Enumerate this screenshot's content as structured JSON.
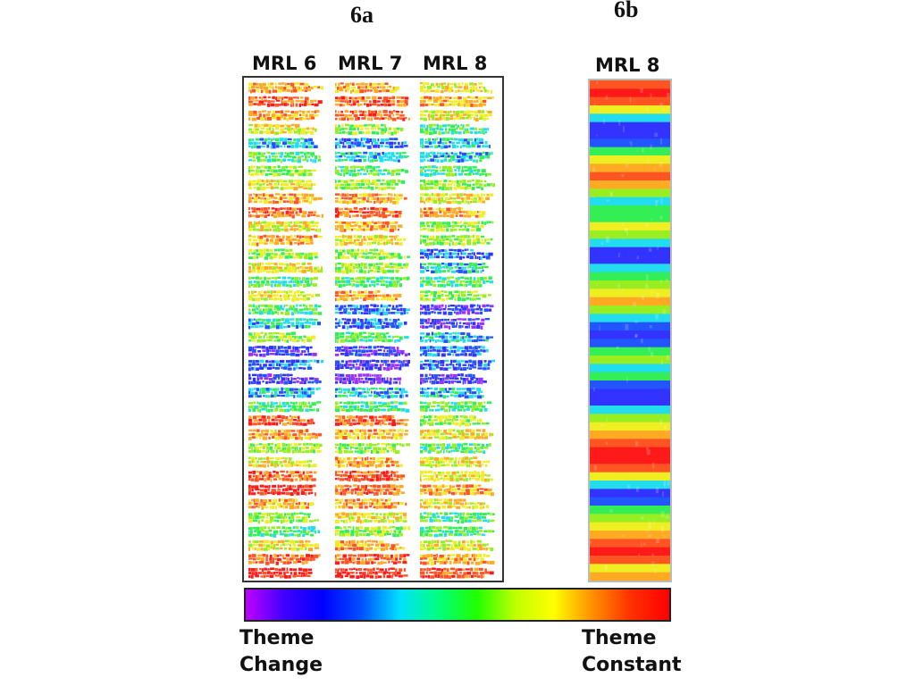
{
  "labels": {
    "fig_a": "6a",
    "fig_b": "6b"
  },
  "panel_a": {
    "columns": [
      {
        "header": "MRL 6"
      },
      {
        "header": "MRL 7"
      },
      {
        "header": "MRL 8"
      }
    ]
  },
  "panel_b": {
    "header": "MRL 8"
  },
  "colorbar": {
    "left_label_line1": "Theme",
    "left_label_line2": "Change",
    "right_label_line1": "Theme",
    "right_label_line2": "Constant",
    "stops": [
      "#c000ff",
      "#4000ff",
      "#0000ff",
      "#0050ff",
      "#00e0ff",
      "#00ff80",
      "#20ff00",
      "#c0ff00",
      "#ffff00",
      "#ff9000",
      "#ff3000",
      "#ff0000"
    ]
  },
  "scale": {
    "colors": [
      "#9b30ff",
      "#3333ff",
      "#2255ff",
      "#22ddee",
      "#33ee55",
      "#99ee22",
      "#eeee22",
      "#ffaa22",
      "#ff5522",
      "#ff1a1a"
    ]
  },
  "bands_b": [
    8,
    9,
    8,
    6,
    3,
    1,
    1,
    2,
    4,
    6,
    7,
    8,
    7,
    5,
    3,
    4,
    4,
    6,
    5,
    3,
    1,
    1,
    3,
    4,
    5,
    6,
    7,
    5,
    3,
    2,
    1,
    2,
    4,
    5,
    3,
    4,
    2,
    1,
    1,
    3,
    5,
    6,
    7,
    8,
    9,
    9,
    8,
    6,
    3,
    1,
    2,
    4,
    5,
    6,
    7,
    8,
    9,
    8,
    6,
    7
  ],
  "rows_a": [
    [
      7,
      7,
      6
    ],
    [
      8,
      8,
      7
    ],
    [
      7,
      8,
      6
    ],
    [
      6,
      5,
      4
    ],
    [
      3,
      2,
      3
    ],
    [
      4,
      3,
      3
    ],
    [
      5,
      4,
      4
    ],
    [
      6,
      5,
      5
    ],
    [
      7,
      7,
      6
    ],
    [
      8,
      8,
      7
    ],
    [
      6,
      7,
      5
    ],
    [
      7,
      6,
      5
    ],
    [
      5,
      5,
      2
    ],
    [
      6,
      5,
      3
    ],
    [
      4,
      4,
      4
    ],
    [
      6,
      7,
      5
    ],
    [
      4,
      2,
      1
    ],
    [
      3,
      2,
      1
    ],
    [
      5,
      4,
      3
    ],
    [
      1,
      1,
      2
    ],
    [
      2,
      1,
      2
    ],
    [
      1,
      0,
      1
    ],
    [
      3,
      3,
      3
    ],
    [
      4,
      4,
      4
    ],
    [
      8,
      8,
      5
    ],
    [
      7,
      7,
      6
    ],
    [
      5,
      5,
      4
    ],
    [
      6,
      7,
      6
    ],
    [
      8,
      8,
      6
    ],
    [
      9,
      8,
      7
    ],
    [
      7,
      7,
      6
    ],
    [
      5,
      6,
      4
    ],
    [
      4,
      5,
      4
    ],
    [
      6,
      7,
      6
    ],
    [
      8,
      8,
      7
    ],
    [
      9,
      9,
      8
    ]
  ]
}
